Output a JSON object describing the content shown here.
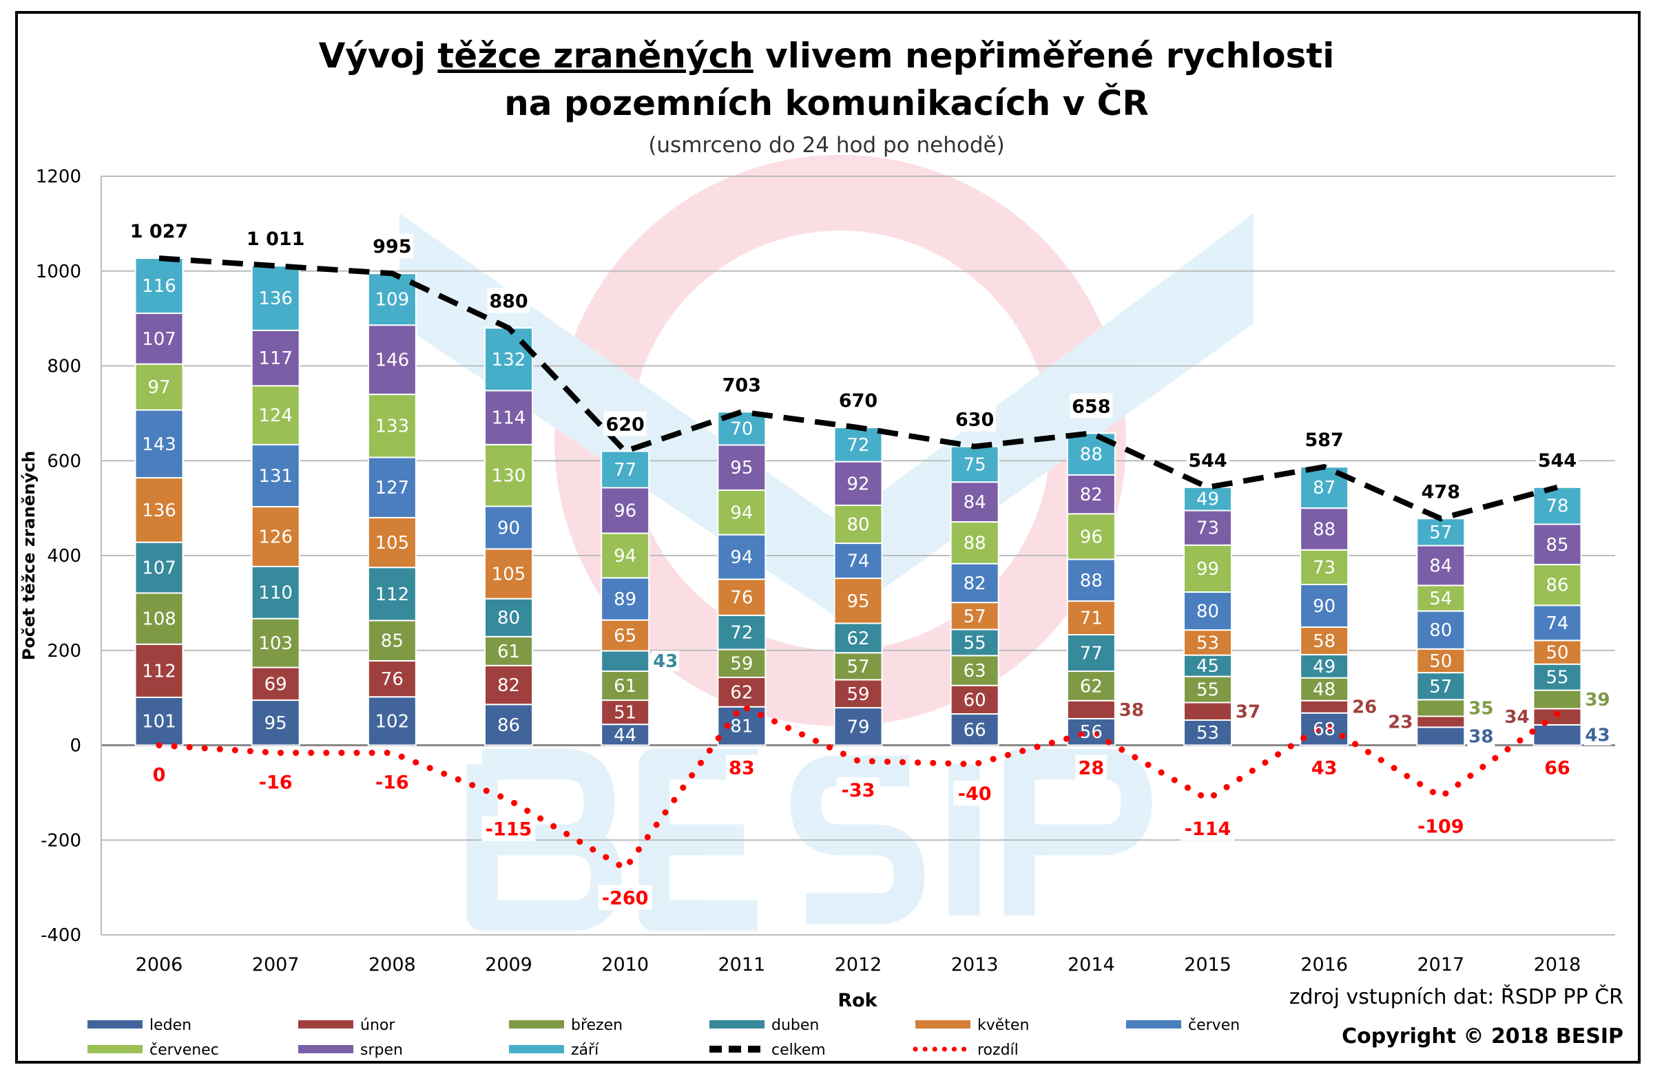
{
  "chart_data": {
    "type": "bar",
    "stacked": true,
    "title_line1_pre": "Vývoj",
    "title_line1_underlined": "těžce zraněných",
    "title_line1_post": "vlivem nepřiměřené rychlosti",
    "title_line2": "na pozemních komunikacích v ČR",
    "subtitle": "(usmrceno do 24 hod po nehodě)",
    "xlabel": "Rok",
    "ylabel": "Počet těžce zraněných",
    "ylim": [
      -400,
      1200
    ],
    "yticks": [
      -400,
      -200,
      0,
      200,
      400,
      600,
      800,
      1000,
      1200
    ],
    "grid": true,
    "legend_position": "bottom",
    "categories": [
      "2006",
      "2007",
      "2008",
      "2009",
      "2010",
      "2011",
      "2012",
      "2013",
      "2014",
      "2015",
      "2016",
      "2017",
      "2018"
    ],
    "series": [
      {
        "name": "leden",
        "color": "#41659b",
        "values": [
          101,
          95,
          102,
          86,
          44,
          81,
          79,
          66,
          56,
          53,
          68,
          38,
          43
        ]
      },
      {
        "name": "únor",
        "color": "#a0403e",
        "values": [
          112,
          69,
          76,
          82,
          51,
          62,
          59,
          60,
          38,
          37,
          26,
          23,
          34
        ]
      },
      {
        "name": "březen",
        "color": "#7f9a45",
        "values": [
          108,
          103,
          85,
          61,
          61,
          59,
          57,
          63,
          62,
          55,
          48,
          35,
          39
        ]
      },
      {
        "name": "duben",
        "color": "#368a9c",
        "values": [
          107,
          110,
          112,
          80,
          43,
          72,
          62,
          55,
          77,
          45,
          49,
          57,
          55
        ]
      },
      {
        "name": "květen",
        "color": "#d37f35",
        "values": [
          136,
          126,
          105,
          105,
          65,
          76,
          95,
          57,
          71,
          53,
          58,
          50,
          50
        ]
      },
      {
        "name": "červen",
        "color": "#4a7ebf",
        "values": [
          143,
          131,
          127,
          90,
          89,
          94,
          74,
          82,
          88,
          80,
          90,
          80,
          74
        ]
      },
      {
        "name": "červenec",
        "color": "#99bf55",
        "values": [
          97,
          124,
          133,
          130,
          94,
          94,
          80,
          88,
          96,
          99,
          73,
          54,
          86
        ]
      },
      {
        "name": "srpen",
        "color": "#7b5ea6",
        "values": [
          107,
          117,
          146,
          114,
          96,
          95,
          92,
          84,
          82,
          73,
          88,
          84,
          85
        ]
      },
      {
        "name": "září",
        "color": "#46aec9",
        "values": [
          116,
          136,
          109,
          132,
          77,
          70,
          72,
          75,
          88,
          49,
          87,
          57,
          78
        ]
      }
    ],
    "lines": [
      {
        "name": "celkem",
        "type": "line",
        "style": "dashed",
        "color": "#000000",
        "values": [
          1027,
          1011,
          995,
          880,
          620,
          703,
          670,
          630,
          658,
          544,
          587,
          478,
          544
        ],
        "labels": [
          "1 027",
          "1 011",
          "995",
          "880",
          "620",
          "703",
          "670",
          "630",
          "658",
          "544",
          "587",
          "478",
          "544"
        ]
      },
      {
        "name": "rozdíl",
        "type": "line",
        "style": "dotted",
        "color": "#ff0000",
        "values": [
          0,
          -16,
          -16,
          -115,
          -260,
          83,
          -33,
          -40,
          28,
          -114,
          43,
          -109,
          66
        ]
      }
    ],
    "watermark": "BESIP"
  },
  "footer": {
    "source": "zdroj vstupních dat: ŘSDP PP ČR",
    "copyright": "Copyright © 2018 BESIP"
  }
}
